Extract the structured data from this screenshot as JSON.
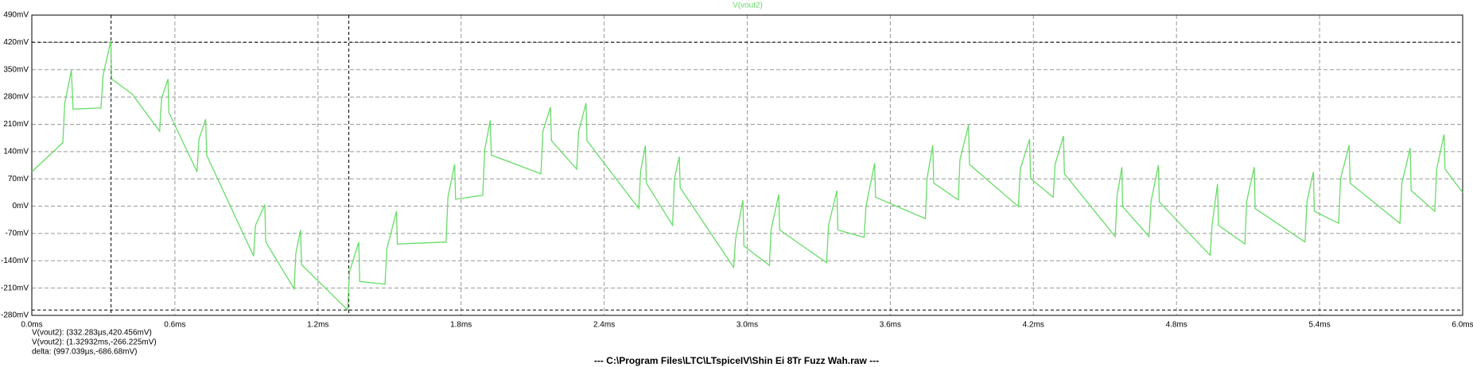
{
  "chart_data": {
    "type": "line",
    "x": [
      0,
      0.13,
      0.138,
      0.166,
      0.173,
      0.29,
      0.299,
      0.331,
      0.335,
      0.42,
      0.536,
      0.544,
      0.571,
      0.575,
      0.693,
      0.701,
      0.729,
      0.733,
      0.93,
      0.938,
      0.977,
      0.981,
      1.1,
      1.107,
      1.127,
      1.131,
      1.324,
      1.332,
      1.371,
      1.375,
      1.481,
      1.489,
      1.529,
      1.533,
      1.737,
      1.745,
      1.773,
      1.777,
      1.891,
      1.899,
      1.922,
      1.927,
      2.135,
      2.143,
      2.175,
      2.179,
      2.285,
      2.293,
      2.324,
      2.328,
      2.545,
      2.553,
      2.573,
      2.577,
      2.687,
      2.695,
      2.715,
      2.719,
      2.943,
      2.951,
      2.982,
      2.986,
      3.093,
      3.1,
      3.132,
      3.136,
      3.333,
      3.341,
      3.376,
      3.38,
      3.49,
      3.498,
      3.534,
      3.538,
      3.747,
      3.754,
      3.778,
      3.782,
      3.885,
      3.892,
      3.928,
      3.932,
      4.137,
      4.145,
      4.184,
      4.188,
      4.283,
      4.291,
      4.326,
      4.33,
      4.543,
      4.551,
      4.571,
      4.574,
      4.685,
      4.693,
      4.724,
      4.728,
      4.941,
      4.949,
      4.972,
      4.976,
      5.087,
      5.094,
      5.126,
      5.13,
      5.339,
      5.347,
      5.374,
      5.378,
      5.48,
      5.488,
      5.524,
      5.528,
      5.737,
      5.745,
      5.78,
      5.784,
      5.883,
      5.891,
      5.922,
      5.926,
      6.0
    ],
    "series": [
      {
        "name": "V(vout2)",
        "color": "#66dd66",
        "values": [
          88,
          163,
          264,
          348,
          249,
          252,
          336,
          423,
          326,
          288,
          192,
          276,
          326,
          240,
          88,
          172,
          223,
          131,
          -128,
          -49,
          4,
          -92,
          -212,
          -121,
          -61,
          -150,
          -266,
          -169,
          -92,
          -193,
          -200,
          -109,
          -13,
          -97,
          -92,
          23,
          107,
          18,
          28,
          144,
          220,
          131,
          83,
          192,
          254,
          168,
          95,
          192,
          264,
          168,
          -6,
          90,
          156,
          59,
          -49,
          71,
          127,
          47,
          -157,
          -85,
          16,
          -102,
          -152,
          -61,
          30,
          -61,
          -145,
          -49,
          40,
          -61,
          -80,
          -1,
          110,
          23,
          -32,
          71,
          156,
          59,
          16,
          119,
          208,
          107,
          -1,
          95,
          172,
          71,
          23,
          107,
          180,
          83,
          -78,
          28,
          100,
          -1,
          -78,
          11,
          105,
          11,
          -126,
          -49,
          57,
          -49,
          -97,
          11,
          100,
          -6,
          -92,
          11,
          88,
          -13,
          -44,
          71,
          156,
          59,
          -44,
          59,
          149,
          40,
          -13,
          95,
          184,
          95,
          35
        ]
      }
    ],
    "xlim": [
      0,
      6
    ],
    "xticks": [
      {
        "value": 0,
        "label": "0.0ms"
      },
      {
        "value": 0.6,
        "label": "0.6ms"
      },
      {
        "value": 1.2,
        "label": "1.2ms"
      },
      {
        "value": 1.8,
        "label": "1.8ms"
      },
      {
        "value": 2.4,
        "label": "2.4ms"
      },
      {
        "value": 3.0,
        "label": "3.0ms"
      },
      {
        "value": 3.6,
        "label": "3.6ms"
      },
      {
        "value": 4.2,
        "label": "4.2ms"
      },
      {
        "value": 4.8,
        "label": "4.8ms"
      },
      {
        "value": 5.4,
        "label": "5.4ms"
      },
      {
        "value": 6.0,
        "label": "6.0ms"
      }
    ],
    "ylim": [
      -280,
      490
    ],
    "yticks": [
      {
        "value": 490,
        "label": "490mV"
      },
      {
        "value": 420,
        "label": "420mV"
      },
      {
        "value": 350,
        "label": "350mV"
      },
      {
        "value": 280,
        "label": "280mV"
      },
      {
        "value": 210,
        "label": "210mV"
      },
      {
        "value": 140,
        "label": "140mV"
      },
      {
        "value": 70,
        "label": "70mV"
      },
      {
        "value": 0,
        "label": "0mV"
      },
      {
        "value": -70,
        "label": "-70mV"
      },
      {
        "value": -140,
        "label": "-140mV"
      },
      {
        "value": -210,
        "label": "-210mV"
      },
      {
        "value": -280,
        "label": "-280mV"
      }
    ],
    "grid": true,
    "cursors": [
      {
        "x": 0.332283,
        "y": 420.456,
        "label": "V(vout2): (332.283µs,420.456mV)"
      },
      {
        "x": 1.32932,
        "y": -266.225,
        "label": "V(vout2): (1.32932ms,-266.225mV)"
      }
    ],
    "delta": "delta: (997.039µs,-686.68mV)",
    "footer": "---  C:\\Program Files\\LTC\\LTspiceIV\\Shin Ei 8Tr Fuzz Wah.raw  ---"
  }
}
